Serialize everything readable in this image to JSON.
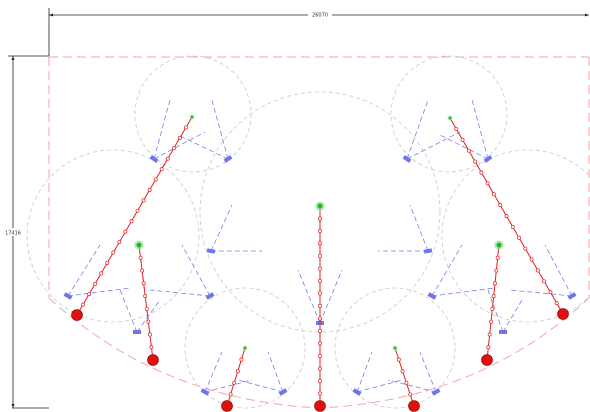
{
  "dimensions": {
    "width_label": "26070",
    "height_label": "17416"
  },
  "colors": {
    "background": "#ffffff",
    "boundary": "#f4a6a6",
    "coverage_circle": "#c9c9c9",
    "scan_lines": "#7a7fe6",
    "sensor": "#6f74e8",
    "path": "#e02020",
    "waypoint": "#e02020",
    "end_node": "#e01010",
    "start_node": "#22b522",
    "start_glow": "#8ee08e",
    "dimension": "#222222"
  },
  "icons": {
    "start": "green-dot",
    "end": "red-dot",
    "sensor": "blue-rectangle"
  }
}
